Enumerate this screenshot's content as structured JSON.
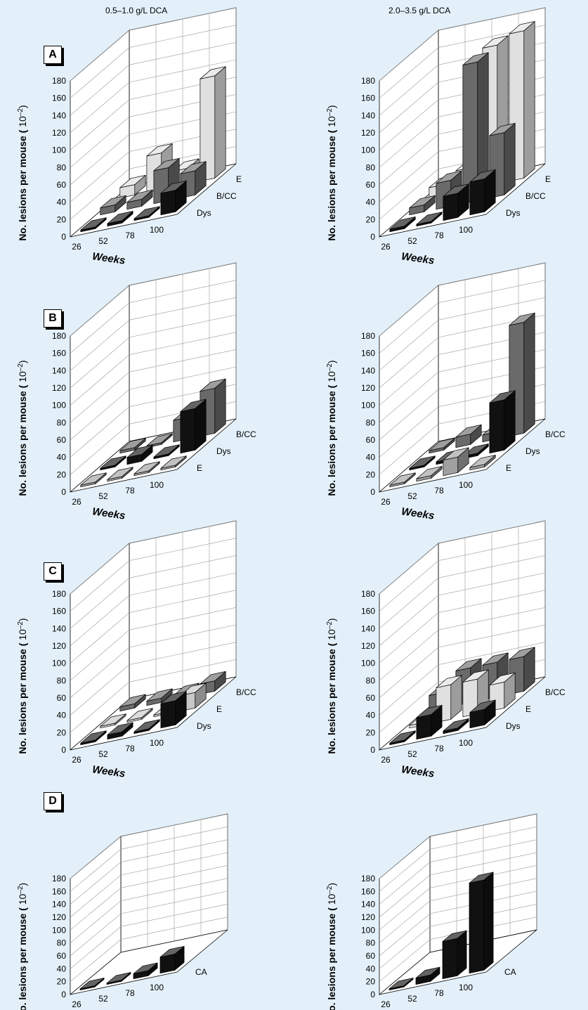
{
  "column_titles": [
    "0.5–1.0 g/L DCA",
    "2.0–3.5 g/L DCA"
  ],
  "panel_letters": [
    "A",
    "B",
    "C",
    "D"
  ],
  "ylabel_main": "No. lesions per mouse (",
  "ylabel_exp": "10",
  "ylabel_sup": "–2",
  "ylabel_close": ")",
  "xlabel": "Weeks",
  "chart_data": [
    {
      "type": "bar",
      "panel": "A",
      "dose": "0.5–1.0 g/L DCA",
      "title": "",
      "xlabel": "Weeks",
      "ylabel": "No. lesions per mouse (10–2)",
      "ylim": [
        0,
        180
      ],
      "yticks": [
        0,
        20,
        40,
        60,
        80,
        100,
        120,
        140,
        160,
        180
      ],
      "categories": [
        "26",
        "52",
        "78",
        "100"
      ],
      "series": [
        {
          "name": "Dys",
          "values": [
            2,
            3,
            2,
            25
          ],
          "color": "#111111"
        },
        {
          "name": "B/CC",
          "values": [
            8,
            8,
            38,
            28
          ],
          "color": "#6a6a6a"
        },
        {
          "name": "E",
          "values": [
            12,
            42,
            18,
            118
          ],
          "color": "#e0e0e0"
        }
      ]
    },
    {
      "type": "bar",
      "panel": "A",
      "dose": "2.0–3.5 g/L DCA",
      "title": "",
      "xlabel": "Weeks",
      "ylabel": "No. lesions per mouse (10–2)",
      "ylim": [
        0,
        180
      ],
      "yticks": [
        0,
        20,
        40,
        60,
        80,
        100,
        120,
        140,
        160,
        180
      ],
      "categories": [
        "26",
        "52",
        "78",
        "100"
      ],
      "series": [
        {
          "name": "Dys",
          "values": [
            3,
            2,
            28,
            38
          ],
          "color": "#111111"
        },
        {
          "name": "B/CC",
          "values": [
            8,
            30,
            160,
            72
          ],
          "color": "#6a6a6a"
        },
        {
          "name": "E",
          "values": [
            12,
            25,
            160,
            170
          ],
          "color": "#e0e0e0"
        }
      ]
    },
    {
      "type": "bar",
      "panel": "B",
      "dose": "0.5–1.0 g/L DCA",
      "title": "",
      "xlabel": "Weeks",
      "ylabel": "No. lesions per mouse (10–2)",
      "ylim": [
        0,
        180
      ],
      "yticks": [
        0,
        20,
        40,
        60,
        80,
        100,
        120,
        140,
        160,
        180
      ],
      "categories": [
        "26",
        "52",
        "78",
        "100"
      ],
      "series": [
        {
          "name": "E",
          "values": [
            2,
            2,
            2,
            2
          ],
          "color": "#a0a0a0"
        },
        {
          "name": "Dys",
          "values": [
            2,
            8,
            2,
            48
          ],
          "color": "#111111"
        },
        {
          "name": "B/CC",
          "values": [
            3,
            2,
            25,
            52
          ],
          "color": "#6a6a6a"
        }
      ]
    },
    {
      "type": "bar",
      "panel": "B",
      "dose": "2.0–3.5 g/L DCA",
      "title": "",
      "xlabel": "Weeks",
      "ylabel": "No. lesions per mouse (10–2)",
      "ylim": [
        0,
        180
      ],
      "yticks": [
        0,
        20,
        40,
        60,
        80,
        100,
        120,
        140,
        160,
        180
      ],
      "categories": [
        "26",
        "52",
        "78",
        "100"
      ],
      "series": [
        {
          "name": "E",
          "values": [
            2,
            3,
            18,
            3
          ],
          "color": "#a0a0a0"
        },
        {
          "name": "Dys",
          "values": [
            2,
            3,
            3,
            58
          ],
          "color": "#111111"
        },
        {
          "name": "B/CC",
          "values": [
            3,
            12,
            8,
            128
          ],
          "color": "#6a6a6a"
        }
      ]
    },
    {
      "type": "bar",
      "panel": "C",
      "dose": "0.5–1.0 g/L DCA",
      "title": "",
      "xlabel": "Weeks",
      "ylabel": "No. lesions per mouse (10–2)",
      "ylim": [
        0,
        180
      ],
      "yticks": [
        0,
        20,
        40,
        60,
        80,
        100,
        120,
        140,
        160,
        180
      ],
      "categories": [
        "26",
        "52",
        "78",
        "100"
      ],
      "series": [
        {
          "name": "Dys",
          "values": [
            2,
            5,
            2,
            28
          ],
          "color": "#111111"
        },
        {
          "name": "E",
          "values": [
            2,
            2,
            2,
            18
          ],
          "color": "#c8c8c8"
        },
        {
          "name": "B/CC",
          "values": [
            5,
            5,
            5,
            12
          ],
          "color": "#6a6a6a"
        }
      ]
    },
    {
      "type": "bar",
      "panel": "C",
      "dose": "2.0–3.5 g/L DCA",
      "title": "",
      "xlabel": "Weeks",
      "ylabel": "No. lesions per mouse (10–2)",
      "ylim": [
        0,
        180
      ],
      "yticks": [
        0,
        20,
        40,
        60,
        80,
        100,
        120,
        140,
        160,
        180
      ],
      "categories": [
        "26",
        "52",
        "78",
        "100"
      ],
      "series": [
        {
          "name": "Dys",
          "values": [
            2,
            25,
            3,
            18
          ],
          "color": "#111111"
        },
        {
          "name": "E",
          "values": [
            3,
            40,
            40,
            30
          ],
          "color": "#e0e0e0"
        },
        {
          "name": "B/CC",
          "values": [
            18,
            40,
            40,
            40
          ],
          "color": "#6a6a6a"
        }
      ]
    },
    {
      "type": "bar",
      "panel": "D",
      "dose": "0.5–1.0 g/L DCA",
      "title": "",
      "xlabel": "Weeks",
      "ylabel": "No. lesions per mouse (10–2)",
      "ylim": [
        0,
        180
      ],
      "yticks": [
        0,
        20,
        40,
        60,
        80,
        100,
        120,
        140,
        160,
        180
      ],
      "categories": [
        "26",
        "52",
        "78",
        "100"
      ],
      "series": [
        {
          "name": "CA",
          "values": [
            2,
            2,
            8,
            25
          ],
          "color": "#111111"
        }
      ]
    },
    {
      "type": "bar",
      "panel": "D",
      "dose": "2.0–3.5 g/L DCA",
      "title": "",
      "xlabel": "Weeks",
      "ylabel": "No. lesions per mouse (10–2)",
      "ylim": [
        0,
        180
      ],
      "yticks": [
        0,
        20,
        40,
        60,
        80,
        100,
        120,
        140,
        160,
        180
      ],
      "categories": [
        "26",
        "52",
        "78",
        "100"
      ],
      "series": [
        {
          "name": "CA",
          "values": [
            2,
            10,
            58,
            140
          ],
          "color": "#111111"
        }
      ]
    }
  ]
}
